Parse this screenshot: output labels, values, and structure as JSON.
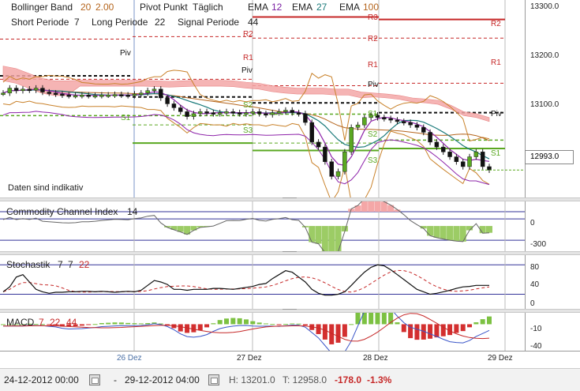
{
  "header": {
    "bollinger": {
      "label": "Bollinger Band",
      "v1": "20",
      "v2": "2.00"
    },
    "pivot": {
      "label": "Pivot Punkt",
      "mode": "Täglich"
    },
    "short": {
      "label": "Short Periode",
      "value": "7"
    },
    "long": {
      "label": "Long Periode",
      "value": "22"
    },
    "signal": {
      "label": "Signal Periode",
      "value": "44"
    },
    "ema": [
      {
        "label": "EMA",
        "value": "12",
        "color": "#7a1fa2"
      },
      {
        "label": "EMA",
        "value": "27",
        "color": "#1a7a7a"
      },
      {
        "label": "EMA",
        "value": "100",
        "color": "#b5651d"
      }
    ]
  },
  "disclaimer": "Daten sind indikativ",
  "price_axis": {
    "ticks": [
      "13300.0",
      "13200.0",
      "13100.0"
    ],
    "last": "12993.0"
  },
  "pivot_labels": {
    "piv": "Piv",
    "r1": "R1",
    "r2": "R2",
    "r3": "R3",
    "s1": "S1",
    "s2": "S2",
    "s3": "S3"
  },
  "cci": {
    "title": "Commodity Channel Index",
    "period": "14",
    "ticks": [
      "0",
      "-300"
    ]
  },
  "stoch": {
    "title": "Stochastik",
    "k": "7",
    "d": "7",
    "slow": "22",
    "ticks": [
      "80",
      "40",
      "0"
    ]
  },
  "macd": {
    "title": "MACD",
    "fast": "7",
    "slow": "22",
    "signal": "44",
    "ticks": [
      "-10",
      "-40"
    ]
  },
  "x_ticks": [
    "26 Dez",
    "27 Dez",
    "28 Dez",
    "29 Dez"
  ],
  "status": {
    "from": "24-12-2012 00:00",
    "dash": "-",
    "to": "29-12-2012 04:00",
    "high": "H: 13201.0",
    "low": "T: 12958.0",
    "chg": "-178.0",
    "pct": "-1.3%"
  },
  "chart_data": {
    "type": "candlestick",
    "y_range": [
      12950,
      13330
    ],
    "price_ticks": [
      13300,
      13200,
      13100
    ],
    "last_price": 12993.0,
    "high": 13201.0,
    "low": 12958.0,
    "change": -178.0,
    "change_pct": -1.3,
    "x_labels": [
      "26 Dez",
      "27 Dez",
      "28 Dez",
      "29 Dez"
    ],
    "close": [
      13150,
      13160,
      13155,
      13158,
      13156,
      13160,
      13152,
      13150,
      13148,
      13146,
      13145,
      13145,
      13146,
      13145,
      13145,
      13146,
      13146,
      13147,
      13146,
      13145,
      13148,
      13150,
      13155,
      13158,
      13140,
      13128,
      13120,
      13112,
      13102,
      13108,
      13112,
      13110,
      13108,
      13110,
      13112,
      13110,
      13108,
      13110,
      13112,
      13108,
      13106,
      13110,
      13112,
      13115,
      13110,
      13108,
      13090,
      13050,
      13040,
      13010,
      12980,
      12990,
      13030,
      13080,
      13085,
      13100,
      13105,
      13100,
      13098,
      13095,
      13092,
      13090,
      13085,
      13080,
      13070,
      13050,
      13040,
      13030,
      13020,
      13010,
      13000,
      13020,
      13030,
      13000,
      12993
    ],
    "cci": {
      "y_range": [
        -420,
        200
      ],
      "ticks": [
        0,
        -300
      ]
    },
    "stochastic": {
      "y_range": [
        -5,
        95
      ],
      "ticks": [
        80,
        40,
        0
      ],
      "k": [
        25,
        35,
        55,
        60,
        45,
        30,
        25,
        22,
        24,
        24,
        25,
        25,
        26,
        26,
        25,
        26,
        25,
        24,
        25,
        26,
        25,
        28,
        38,
        48,
        45,
        40,
        30,
        30,
        28,
        30,
        30,
        30,
        32,
        32,
        31,
        30,
        32,
        34,
        36,
        40,
        42,
        52,
        60,
        68,
        65,
        55,
        45,
        30,
        22,
        18,
        18,
        20,
        25,
        38,
        52,
        65,
        75,
        80,
        78,
        70,
        60,
        50,
        40,
        30,
        25,
        20,
        22,
        25,
        28,
        32,
        35,
        36,
        38,
        38,
        38
      ]
    },
    "macd": {
      "y_range": [
        -48,
        12
      ],
      "ticks": [
        -10,
        -40
      ]
    }
  }
}
